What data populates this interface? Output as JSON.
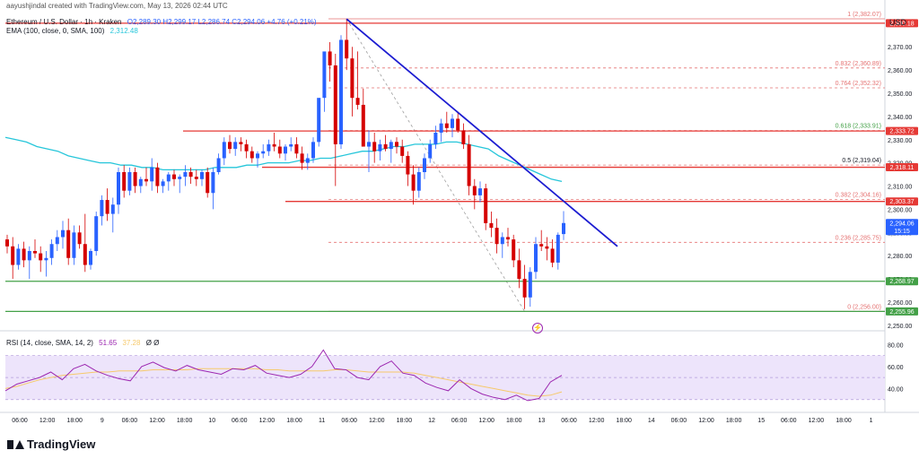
{
  "header": {
    "author_line": "aayushjindal created with TradingView.com, May 13, 2026 02:44 UTC",
    "symbol": "Ethereum / U.S. Dollar · 1h · Kraken",
    "ohlc": "O2,289.30  H2,299.17  L2,286.74  C2,294.06  +4.76 (+0.21%)",
    "ema_label": "EMA (100, close, 0, SMA, 100)",
    "ema_value": "2,312.48",
    "rsi_label": "RSI (14, close, SMA, 14, 2)",
    "rsi_value": "51.65",
    "rsi_ma_value": "37.28",
    "rsi_extra": "Ø  Ø",
    "currency": "USD"
  },
  "brand": {
    "name": "TradingView"
  },
  "colors": {
    "up": "#2962ff",
    "down": "#d50000",
    "ema": "#26c6da",
    "trendline": "#1c1cd1",
    "resistance": "#e53935",
    "support": "#43a047",
    "fib": "#e57373",
    "rsi": "#9c27b0",
    "rsi_ma": "#f6c96b",
    "rsi_band": "#ede4fb"
  },
  "chart_data": {
    "type": "candlestick",
    "y_axis": {
      "ticks": [
        "2,370.00",
        "2,360.00",
        "2,350.00",
        "2,340.00",
        "2,330.00",
        "2,320.00",
        "2,310.00",
        "2,300.00",
        "2,290.00",
        "2,280.00",
        "2,270.00",
        "2,260.00",
        "2,250.00"
      ],
      "ylim": [
        2248,
        2384
      ]
    },
    "x_axis": {
      "ticks": [
        "06:00",
        "12:00",
        "18:00",
        "9",
        "06:00",
        "12:00",
        "18:00",
        "10",
        "06:00",
        "12:00",
        "18:00",
        "11",
        "06:00",
        "12:00",
        "18:00",
        "12",
        "06:00",
        "12:00",
        "18:00",
        "13",
        "06:00",
        "12:00",
        "18:00",
        "14",
        "06:00",
        "12:00",
        "18:00",
        "15",
        "06:00",
        "12:00",
        "18:00",
        "1"
      ]
    },
    "candles_ohlc": [
      [
        2287,
        2289,
        2281,
        2284
      ],
      [
        2284,
        2288,
        2270,
        2276
      ],
      [
        2276,
        2285,
        2274,
        2283
      ],
      [
        2283,
        2286,
        2275,
        2278
      ],
      [
        2278,
        2284,
        2270,
        2282
      ],
      [
        2282,
        2287,
        2279,
        2281
      ],
      [
        2281,
        2284,
        2273,
        2278
      ],
      [
        2278,
        2282,
        2271,
        2279
      ],
      [
        2279,
        2287,
        2276,
        2285
      ],
      [
        2285,
        2291,
        2282,
        2288
      ],
      [
        2288,
        2295,
        2283,
        2291
      ],
      [
        2291,
        2296,
        2276,
        2279
      ],
      [
        2279,
        2293,
        2276,
        2290
      ],
      [
        2290,
        2293,
        2283,
        2285
      ],
      [
        2285,
        2298,
        2273,
        2276
      ],
      [
        2276,
        2283,
        2274,
        2282
      ],
      [
        2282,
        2299,
        2280,
        2297
      ],
      [
        2297,
        2306,
        2293,
        2304
      ],
      [
        2304,
        2309,
        2295,
        2298
      ],
      [
        2298,
        2305,
        2290,
        2302
      ],
      [
        2302,
        2318,
        2298,
        2316
      ],
      [
        2316,
        2319,
        2305,
        2308
      ],
      [
        2308,
        2318,
        2306,
        2316
      ],
      [
        2316,
        2318,
        2307,
        2310
      ],
      [
        2310,
        2314,
        2307,
        2313
      ],
      [
        2313,
        2318,
        2310,
        2312
      ],
      [
        2312,
        2322,
        2308,
        2318
      ],
      [
        2318,
        2320,
        2307,
        2310
      ],
      [
        2310,
        2313,
        2307,
        2312
      ],
      [
        2312,
        2316,
        2308,
        2315
      ],
      [
        2315,
        2317,
        2310,
        2313
      ],
      [
        2313,
        2315,
        2307,
        2314
      ],
      [
        2314,
        2319,
        2310,
        2316
      ],
      [
        2316,
        2318,
        2311,
        2314
      ],
      [
        2314,
        2317,
        2310,
        2313
      ],
      [
        2313,
        2317,
        2310,
        2316
      ],
      [
        2316,
        2318,
        2305,
        2307
      ],
      [
        2307,
        2318,
        2300,
        2316
      ],
      [
        2316,
        2324,
        2315,
        2322
      ],
      [
        2322,
        2331,
        2319,
        2329
      ],
      [
        2329,
        2332,
        2324,
        2326
      ],
      [
        2326,
        2331,
        2323,
        2329
      ],
      [
        2329,
        2331,
        2325,
        2328
      ],
      [
        2328,
        2330,
        2322,
        2325
      ],
      [
        2325,
        2327,
        2320,
        2322
      ],
      [
        2322,
        2325,
        2318,
        2324
      ],
      [
        2324,
        2328,
        2322,
        2325
      ],
      [
        2325,
        2330,
        2323,
        2328
      ],
      [
        2328,
        2333,
        2325,
        2327
      ],
      [
        2327,
        2330,
        2322,
        2324
      ],
      [
        2324,
        2328,
        2321,
        2327
      ],
      [
        2327,
        2331,
        2325,
        2328
      ],
      [
        2328,
        2331,
        2322,
        2324
      ],
      [
        2324,
        2327,
        2317,
        2320
      ],
      [
        2320,
        2324,
        2317,
        2322
      ],
      [
        2322,
        2331,
        2320,
        2329
      ],
      [
        2329,
        2340,
        2327,
        2348
      ],
      [
        2348,
        2361,
        2342,
        2368
      ],
      [
        2368,
        2372,
        2355,
        2362
      ],
      [
        2362,
        2367,
        2310,
        2328
      ],
      [
        2328,
        2375,
        2326,
        2373
      ],
      [
        2373,
        2382,
        2360,
        2365
      ],
      [
        2365,
        2370,
        2340,
        2348
      ],
      [
        2348,
        2368,
        2343,
        2345
      ],
      [
        2345,
        2352,
        2330,
        2327
      ],
      [
        2327,
        2334,
        2316,
        2329
      ],
      [
        2329,
        2333,
        2320,
        2325
      ],
      [
        2325,
        2330,
        2321,
        2328
      ],
      [
        2328,
        2332,
        2325,
        2326
      ],
      [
        2326,
        2330,
        2320,
        2329
      ],
      [
        2329,
        2331,
        2324,
        2327
      ],
      [
        2327,
        2330,
        2320,
        2323
      ],
      [
        2323,
        2325,
        2310,
        2315
      ],
      [
        2315,
        2319,
        2302,
        2308
      ],
      [
        2308,
        2318,
        2305,
        2316
      ],
      [
        2316,
        2324,
        2313,
        2322
      ],
      [
        2322,
        2330,
        2320,
        2328
      ],
      [
        2328,
        2336,
        2326,
        2333
      ],
      [
        2333,
        2339,
        2329,
        2337
      ],
      [
        2337,
        2342,
        2333,
        2335
      ],
      [
        2335,
        2341,
        2331,
        2339
      ],
      [
        2339,
        2342,
        2333,
        2334
      ],
      [
        2334,
        2337,
        2326,
        2328
      ],
      [
        2328,
        2332,
        2306,
        2310
      ],
      [
        2310,
        2313,
        2300,
        2306
      ],
      [
        2306,
        2312,
        2303,
        2309
      ],
      [
        2309,
        2311,
        2291,
        2294
      ],
      [
        2294,
        2299,
        2288,
        2292
      ],
      [
        2292,
        2296,
        2281,
        2285
      ],
      [
        2285,
        2290,
        2279,
        2288
      ],
      [
        2288,
        2292,
        2284,
        2287
      ],
      [
        2287,
        2289,
        2275,
        2278
      ],
      [
        2278,
        2283,
        2266,
        2270
      ],
      [
        2270,
        2276,
        2257,
        2262
      ],
      [
        2262,
        2275,
        2258,
        2273
      ],
      [
        2273,
        2288,
        2270,
        2285
      ],
      [
        2285,
        2291,
        2282,
        2284
      ],
      [
        2284,
        2288,
        2278,
        2283
      ],
      [
        2283,
        2287,
        2275,
        2277
      ],
      [
        2277,
        2290,
        2274,
        2289
      ],
      [
        2289.3,
        2299.17,
        2286.74,
        2294.06
      ]
    ],
    "ema_100": [
      2331,
      2330,
      2329,
      2327,
      2326,
      2325,
      2323,
      2322,
      2321,
      2320,
      2320,
      2319,
      2319,
      2318,
      2318,
      2317,
      2317,
      2317,
      2317,
      2317,
      2318,
      2318,
      2318,
      2319,
      2319,
      2320,
      2320,
      2320,
      2321,
      2321,
      2322,
      2322,
      2323,
      2324,
      2325,
      2325,
      2326,
      2327,
      2327,
      2328,
      2328,
      2328,
      2329,
      2329,
      2328,
      2327,
      2326,
      2323,
      2321,
      2319,
      2317,
      2315,
      2313,
      2312
    ],
    "rsi": [
      38,
      44,
      47,
      50,
      55,
      48,
      58,
      62,
      56,
      52,
      49,
      47,
      60,
      64,
      59,
      56,
      61,
      57,
      55,
      53,
      58,
      57,
      61,
      54,
      52,
      50,
      53,
      60,
      75,
      58,
      57,
      50,
      48,
      60,
      65,
      54,
      52,
      45,
      41,
      38,
      48,
      40,
      35,
      32,
      30,
      34,
      29,
      31,
      46,
      52
    ],
    "rsi_ma": [
      40,
      42,
      45,
      48,
      50,
      52,
      53,
      54,
      55,
      55,
      56,
      56,
      56,
      57,
      57,
      57,
      57,
      58,
      58,
      58,
      58,
      58,
      58,
      57,
      57,
      56,
      56,
      56,
      56,
      57,
      57,
      56,
      55,
      55,
      55,
      55,
      54,
      52,
      50,
      48,
      46,
      44,
      42,
      40,
      38,
      36,
      34,
      33,
      34,
      37
    ],
    "rsi_ticks": [
      "80.00",
      "60.00",
      "40.00"
    ],
    "fib_levels": [
      {
        "ratio": "1",
        "price": "2,382.07"
      },
      {
        "ratio": "0.832",
        "price": "2,360.89"
      },
      {
        "ratio": "0.764",
        "price": "2,352.32"
      },
      {
        "ratio": "0.618",
        "price": "2,333.91"
      },
      {
        "ratio": "0.5",
        "price": "2,319.04"
      },
      {
        "ratio": "0.382",
        "price": "2,304.16"
      },
      {
        "ratio": "0.236",
        "price": "2,285.75"
      },
      {
        "ratio": "0",
        "price": "2,256.00"
      }
    ],
    "price_tags": [
      {
        "price": "2,380.18",
        "kind": "resistance"
      },
      {
        "price": "2,333.72",
        "kind": "resistance"
      },
      {
        "price": "2,318.11",
        "kind": "resistance"
      },
      {
        "price": "2,303.37",
        "kind": "resistance"
      },
      {
        "price": "2,294.06",
        "kind": "last",
        "sub": "15:15"
      },
      {
        "price": "2,268.97",
        "kind": "support"
      },
      {
        "price": "2,255.96",
        "kind": "support"
      }
    ]
  }
}
